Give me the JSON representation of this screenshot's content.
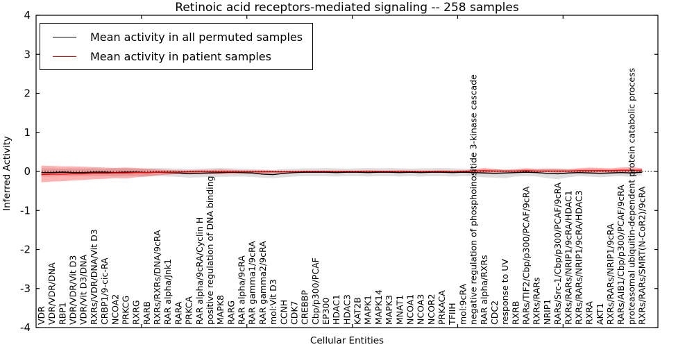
{
  "chart_data": {
    "type": "line",
    "title": "Retinoic acid receptors-mediated signaling -- 258 samples",
    "xlabel": "Cellular Entities",
    "ylabel": "Inferred Activity",
    "n_samples_in_title": 258,
    "ylim": [
      -4,
      4
    ],
    "yticks": [
      -4,
      -3,
      -2,
      -1,
      0,
      1,
      2,
      3,
      4
    ],
    "xticks": [
      10,
      20,
      30,
      40,
      50
    ],
    "grid": false,
    "legend_position": "upper left",
    "zero_line": {
      "y": 0,
      "style": "dotted",
      "color": "#000000"
    },
    "categories": [
      "VDR",
      "VDR/VDR/DNA",
      "RBP1",
      "VDR/VDR/Vit D3",
      "VDR/Vit D3/DNA",
      "RXRs/VDR/DNA/Vit D3",
      "CRBP1/9-cic-RA",
      "NCOA2",
      "PRKCG",
      "RXRG",
      "RARB",
      "RXRs/RXRs/DNA/9cRA",
      "RAR alpha/Jnk1",
      "RARA",
      "PRKCA",
      "RAR alpha/9cRA/Cyclin H",
      "positive regulation of DNA binding",
      "MAPK8",
      "RARG",
      "RAR alpha/9cRA",
      "RAR gamma1/9cRA",
      "RAR gamma2/9cRA",
      "mol:Vit D3",
      "CCNH",
      "CDK7",
      "CREBBP",
      "Cbp/p300/PCAF",
      "EP300",
      "HDAC1",
      "HDAC3",
      "KAT2B",
      "MAPK1",
      "MAPK14",
      "MAPK3",
      "MNAT1",
      "NCOA1",
      "NCOA3",
      "NCOR2",
      "PRKACA",
      "TFIIH",
      "mol:9cRA",
      "negative regulation of phosphoinositide 3-kinase cascade",
      "RAR alpha/RXRs",
      "CDC2",
      "response to UV",
      "RXRB",
      "RARs/TIF2/Cbp/p300/PCAF/9cRA",
      "RXRs/RARs",
      "NRIP1",
      "RARs/Src-1/Cbp/p300/PCAF/9cRA",
      "RXRs/RARs/NRIP1/9cRA/HDAC1",
      "RXRs/RARs/NRIP1/9cRA/HDAC3",
      "RXRA",
      "AKT1",
      "RXRs/RARs/NRIP1/9cRA",
      "RARs/AIB1/Cbp/p300/PCAF/9cRA",
      "proteasomal ubiquitin-dependent protein catabolic process",
      "RXRs/RARs/SMRT(N-CoR2)/9cRA"
    ],
    "series": [
      {
        "name": "Mean activity in all permuted samples",
        "color": "#000000",
        "values": [
          -0.03,
          -0.03,
          -0.02,
          -0.03,
          -0.03,
          -0.02,
          -0.02,
          -0.03,
          -0.02,
          -0.02,
          -0.03,
          -0.02,
          -0.03,
          -0.04,
          -0.06,
          -0.05,
          -0.04,
          -0.03,
          -0.02,
          -0.03,
          -0.04,
          -0.07,
          -0.08,
          -0.05,
          -0.03,
          -0.02,
          -0.02,
          -0.02,
          -0.03,
          -0.02,
          -0.02,
          -0.03,
          -0.02,
          -0.02,
          -0.03,
          -0.02,
          -0.03,
          -0.02,
          -0.02,
          -0.03,
          -0.02,
          -0.03,
          -0.04,
          -0.05,
          -0.04,
          -0.03,
          -0.02,
          -0.03,
          -0.05,
          -0.06,
          -0.04,
          -0.03,
          -0.04,
          -0.05,
          -0.04,
          -0.03,
          -0.04,
          -0.02
        ]
      },
      {
        "name": "Mean activity in patient samples",
        "color": "#ff0000",
        "values": [
          -0.08,
          -0.07,
          -0.07,
          -0.06,
          -0.06,
          -0.05,
          -0.05,
          -0.04,
          -0.04,
          -0.03,
          -0.03,
          -0.02,
          -0.02,
          -0.02,
          -0.01,
          -0.01,
          -0.01,
          -0.01,
          -0.01,
          -0.01,
          -0.01,
          -0.01,
          -0.01,
          -0.01,
          -0.01,
          0,
          0,
          0,
          0,
          0,
          0,
          0,
          0,
          0,
          0,
          0,
          0,
          0,
          0,
          0,
          0,
          0.01,
          0.02,
          0.01,
          0.01,
          0.01,
          0.02,
          0.01,
          0.01,
          0.01,
          0.01,
          0.02,
          0.02,
          0.02,
          0.02,
          0.03,
          0.03,
          0.03
        ]
      }
    ],
    "bands": [
      {
        "name": "permuted-samples-range",
        "color": "#888888",
        "opacity": 0.28,
        "upper": [
          0.08,
          0.08,
          0.07,
          0.08,
          0.07,
          0.08,
          0.07,
          0.08,
          0.08,
          0.07,
          0.08,
          0.09,
          0.08,
          0.07,
          0.06,
          0.07,
          0.08,
          0.09,
          0.08,
          0.07,
          0.06,
          0.05,
          0.04,
          0.06,
          0.07,
          0.08,
          0.08,
          0.09,
          0.08,
          0.07,
          0.08,
          0.09,
          0.08,
          0.09,
          0.08,
          0.07,
          0.08,
          0.08,
          0.09,
          0.08,
          0.07,
          0.06,
          0.05,
          0.06,
          0.05,
          0.06,
          0.07,
          0.06,
          0.07,
          0.08,
          0.07,
          0.06,
          0.05,
          0.06,
          0.05,
          0.06,
          0.05,
          0.06
        ],
        "lower": [
          -0.13,
          -0.13,
          -0.12,
          -0.13,
          -0.12,
          -0.12,
          -0.12,
          -0.13,
          -0.12,
          -0.12,
          -0.13,
          -0.12,
          -0.13,
          -0.14,
          -0.16,
          -0.15,
          -0.14,
          -0.14,
          -0.13,
          -0.13,
          -0.14,
          -0.16,
          -0.17,
          -0.15,
          -0.13,
          -0.12,
          -0.12,
          -0.12,
          -0.13,
          -0.12,
          -0.12,
          -0.13,
          -0.12,
          -0.12,
          -0.13,
          -0.12,
          -0.13,
          -0.12,
          -0.12,
          -0.13,
          -0.12,
          -0.13,
          -0.15,
          -0.16,
          -0.17,
          -0.13,
          -0.12,
          -0.13,
          -0.17,
          -0.2,
          -0.15,
          -0.12,
          -0.13,
          -0.15,
          -0.13,
          -0.12,
          -0.14,
          -0.1
        ]
      },
      {
        "name": "patient-samples-range",
        "color": "#ff0000",
        "opacity": 0.3,
        "upper": [
          0.15,
          0.14,
          0.13,
          0.13,
          0.12,
          0.11,
          0.1,
          0.09,
          0.1,
          0.09,
          0.07,
          0.05,
          0.04,
          0.03,
          0.03,
          0.04,
          0.04,
          0.05,
          0.04,
          0.03,
          0.03,
          0.03,
          0.02,
          0.02,
          0.02,
          0.02,
          0.02,
          0.02,
          0.02,
          0.02,
          0.02,
          0.03,
          0.02,
          0.02,
          0.03,
          0.02,
          0.02,
          0.02,
          0.03,
          0.02,
          0.03,
          0.05,
          0.09,
          0.06,
          0.04,
          0.05,
          0.08,
          0.06,
          0.07,
          0.06,
          0.05,
          0.08,
          0.1,
          0.09,
          0.08,
          0.1,
          0.11,
          0.08
        ],
        "lower": [
          -0.28,
          -0.26,
          -0.25,
          -0.23,
          -0.22,
          -0.2,
          -0.19,
          -0.17,
          -0.18,
          -0.15,
          -0.13,
          -0.1,
          -0.08,
          -0.06,
          -0.05,
          -0.06,
          -0.06,
          -0.07,
          -0.06,
          -0.05,
          -0.05,
          -0.05,
          -0.04,
          -0.04,
          -0.03,
          -0.03,
          -0.02,
          -0.02,
          -0.02,
          -0.02,
          -0.02,
          -0.03,
          -0.02,
          -0.02,
          -0.03,
          -0.02,
          -0.02,
          -0.02,
          -0.03,
          -0.02,
          -0.02,
          -0.03,
          -0.04,
          -0.03,
          -0.02,
          -0.02,
          -0.03,
          -0.02,
          -0.02,
          -0.03,
          -0.02,
          -0.03,
          -0.04,
          -0.03,
          -0.03,
          -0.03,
          -0.04,
          -0.02
        ]
      }
    ]
  }
}
